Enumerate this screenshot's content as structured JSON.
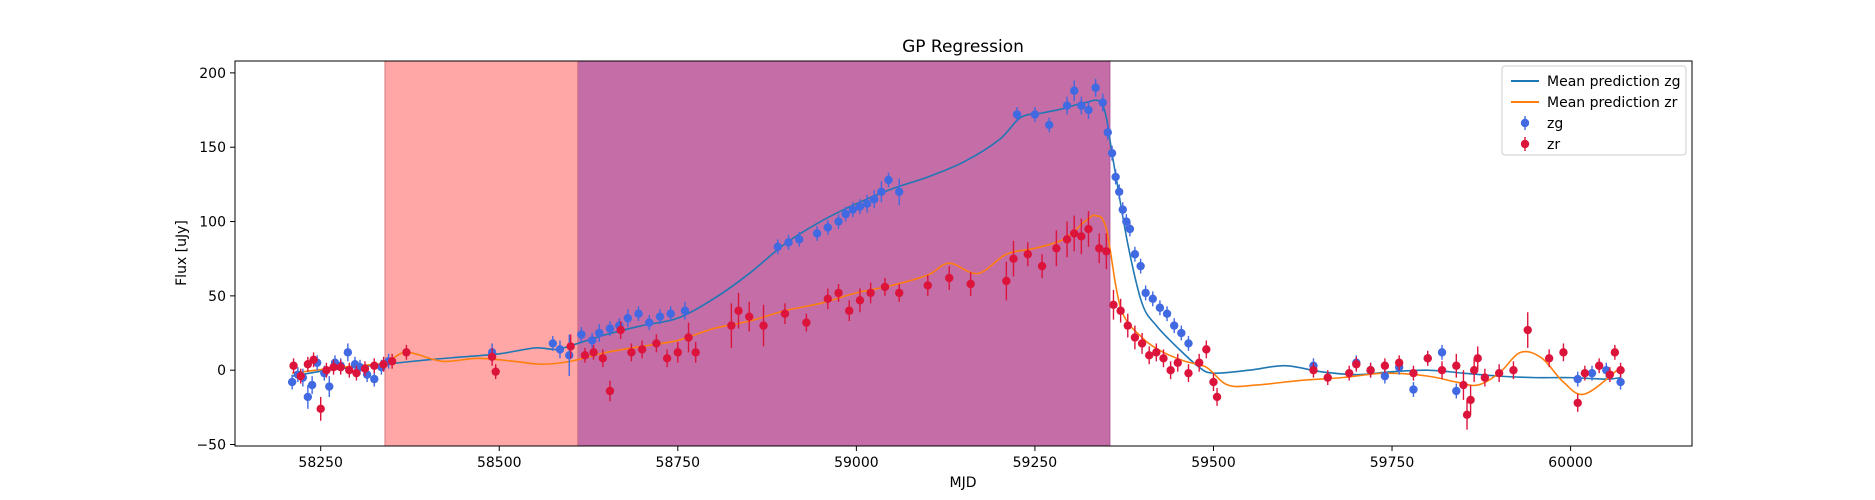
{
  "chart_data": {
    "type": "scatter",
    "title": "GP Regression",
    "xlabel": "MJD",
    "ylabel": "Flux [uJy]",
    "xlim": [
      58130,
      60170
    ],
    "ylim": [
      -51,
      208
    ],
    "xticks": [
      58250,
      58500,
      58750,
      59000,
      59250,
      59500,
      59750,
      60000
    ],
    "yticks": [
      -50,
      0,
      50,
      100,
      150,
      200
    ],
    "legend_position": "top-right",
    "shaded_regions": [
      {
        "x_start": 58340,
        "x_end": 58610,
        "color": "#ffa7a7"
      },
      {
        "x_start": 58610,
        "x_end": 59355,
        "color": "#c46da7"
      }
    ],
    "series": [
      {
        "name": "Mean prediction zg",
        "kind": "line",
        "color": "#1f77b4",
        "x": [
          58210,
          58260,
          58300,
          58340,
          58400,
          58450,
          58500,
          58550,
          58580,
          58610,
          58650,
          58700,
          58750,
          58800,
          58850,
          58900,
          58950,
          59000,
          59050,
          59100,
          59150,
          59200,
          59230,
          59260,
          59290,
          59320,
          59345,
          59360,
          59380,
          59400,
          59420,
          59450,
          59480,
          59500,
          59550,
          59600,
          59650,
          59700,
          59750,
          59800,
          59850,
          59900,
          59950,
          60000,
          60050,
          60070
        ],
        "y": [
          -4,
          0,
          2,
          4,
          7,
          9,
          11,
          15,
          14,
          18,
          24,
          30,
          35,
          48,
          65,
          85,
          100,
          112,
          122,
          130,
          140,
          155,
          170,
          173,
          176,
          180,
          178,
          140,
          85,
          45,
          30,
          15,
          2,
          -2,
          0,
          3,
          -1,
          -3,
          -1,
          0,
          -2,
          -4,
          -5,
          -5,
          -6,
          -5
        ]
      },
      {
        "name": "Mean prediction zr",
        "kind": "line",
        "color": "#ff7f0e",
        "x": [
          58210,
          58260,
          58300,
          58340,
          58370,
          58420,
          58470,
          58520,
          58560,
          58600,
          58650,
          58700,
          58750,
          58800,
          58850,
          58900,
          58950,
          59000,
          59050,
          59100,
          59130,
          59170,
          59210,
          59250,
          59290,
          59320,
          59335,
          59350,
          59370,
          59400,
          59430,
          59460,
          59490,
          59520,
          59560,
          59620,
          59680,
          59740,
          59800,
          59840,
          59870,
          59900,
          59930,
          59960,
          59990,
          60020,
          60070
        ],
        "y": [
          -2,
          1,
          3,
          5,
          12,
          6,
          8,
          6,
          4,
          6,
          12,
          16,
          20,
          28,
          33,
          40,
          45,
          52,
          57,
          64,
          72,
          65,
          78,
          82,
          88,
          100,
          104,
          95,
          42,
          22,
          12,
          6,
          2,
          -10,
          -10,
          -7,
          -5,
          -2,
          -4,
          -8,
          -10,
          -2,
          12,
          8,
          -8,
          -16,
          2
        ]
      },
      {
        "name": "zg",
        "kind": "errorbar",
        "color": "#4169e1",
        "x": [
          58210,
          58218,
          58225,
          58232,
          58238,
          58245,
          58255,
          58262,
          58270,
          58278,
          58288,
          58298,
          58305,
          58315,
          58325,
          58335,
          58345,
          58490,
          58575,
          58585,
          58598,
          58615,
          58630,
          58640,
          58655,
          58668,
          58680,
          58695,
          58710,
          58725,
          58740,
          58760,
          58890,
          58905,
          58920,
          58945,
          58960,
          58975,
          58985,
          58995,
          59005,
          59015,
          59025,
          59035,
          59045,
          59060,
          59225,
          59250,
          59270,
          59295,
          59305,
          59315,
          59325,
          59335,
          59345,
          59352,
          59358,
          59363,
          59368,
          59373,
          59378,
          59383,
          59390,
          59398,
          59405,
          59415,
          59425,
          59435,
          59445,
          59455,
          59465,
          59640,
          59700,
          59720,
          59740,
          59760,
          59780,
          59800,
          59820,
          59840,
          60010,
          60030,
          60050,
          60070
        ],
        "y": [
          -8,
          -3,
          -5,
          -18,
          -10,
          5,
          -2,
          -11,
          5,
          3,
          12,
          4,
          2,
          -3,
          -6,
          2,
          6,
          12,
          18,
          14,
          10,
          24,
          20,
          25,
          28,
          30,
          35,
          38,
          32,
          36,
          38,
          40,
          83,
          86,
          88,
          92,
          96,
          100,
          105,
          108,
          110,
          112,
          115,
          120,
          128,
          120,
          172,
          172,
          165,
          178,
          188,
          178,
          175,
          190,
          180,
          160,
          146,
          130,
          120,
          108,
          100,
          95,
          78,
          70,
          52,
          48,
          42,
          38,
          30,
          25,
          18,
          3,
          5,
          0,
          -4,
          2,
          -13,
          8,
          12,
          -14,
          -6,
          -2,
          0,
          -8
        ],
        "yerr": [
          5,
          5,
          6,
          8,
          6,
          5,
          5,
          7,
          5,
          5,
          6,
          5,
          5,
          5,
          5,
          5,
          5,
          6,
          5,
          6,
          14,
          5,
          5,
          6,
          5,
          5,
          6,
          5,
          5,
          5,
          5,
          6,
          5,
          5,
          5,
          5,
          5,
          5,
          5,
          5,
          5,
          6,
          6,
          7,
          5,
          9,
          5,
          5,
          5,
          6,
          7,
          6,
          6,
          6,
          6,
          5,
          5,
          5,
          5,
          5,
          5,
          5,
          5,
          5,
          5,
          5,
          5,
          5,
          5,
          5,
          5,
          5,
          5,
          5,
          5,
          5,
          5,
          5,
          5,
          5,
          5,
          5,
          5,
          5
        ]
      },
      {
        "name": "zr",
        "kind": "errorbar",
        "color": "#dc143c",
        "x": [
          58212,
          58222,
          58232,
          58240,
          58250,
          58258,
          58268,
          58278,
          58290,
          58300,
          58312,
          58325,
          58338,
          58350,
          58370,
          58490,
          58495,
          58600,
          58620,
          58632,
          58645,
          58655,
          58670,
          58685,
          58700,
          58720,
          58735,
          58750,
          58765,
          58775,
          58825,
          58835,
          58850,
          58870,
          58900,
          58930,
          58960,
          58975,
          58990,
          59005,
          59020,
          59040,
          59060,
          59100,
          59130,
          59160,
          59210,
          59220,
          59240,
          59260,
          59280,
          59295,
          59305,
          59315,
          59325,
          59340,
          59350,
          59360,
          59370,
          59380,
          59390,
          59400,
          59410,
          59420,
          59430,
          59440,
          59450,
          59465,
          59480,
          59490,
          59500,
          59505,
          59640,
          59660,
          59690,
          59700,
          59720,
          59740,
          59760,
          59780,
          59800,
          59820,
          59840,
          59850,
          59855,
          59860,
          59865,
          59870,
          59880,
          59900,
          59920,
          59940,
          59970,
          59990,
          60010,
          60020,
          60040,
          60055,
          60062,
          60070
        ],
        "y": [
          3,
          -4,
          4,
          7,
          -26,
          0,
          2,
          2,
          0,
          -2,
          1,
          3,
          4,
          6,
          12,
          9,
          -1,
          16,
          10,
          12,
          8,
          -14,
          27,
          12,
          14,
          18,
          8,
          12,
          22,
          12,
          30,
          40,
          36,
          30,
          38,
          32,
          48,
          52,
          40,
          47,
          52,
          56,
          52,
          57,
          62,
          58,
          60,
          75,
          78,
          70,
          82,
          88,
          92,
          90,
          95,
          82,
          80,
          44,
          40,
          30,
          22,
          18,
          10,
          12,
          8,
          0,
          5,
          -2,
          5,
          14,
          -8,
          -18,
          0,
          -5,
          -2,
          4,
          0,
          3,
          5,
          -2,
          8,
          0,
          3,
          -10,
          -30,
          -20,
          0,
          8,
          -5,
          -2,
          0,
          27,
          8,
          12,
          -22,
          -2,
          3,
          -3,
          12,
          0
        ],
        "yerr": [
          5,
          5,
          5,
          5,
          8,
          5,
          5,
          5,
          5,
          5,
          5,
          5,
          5,
          5,
          5,
          6,
          5,
          8,
          5,
          5,
          6,
          7,
          6,
          6,
          6,
          6,
          6,
          7,
          10,
          7,
          15,
          12,
          10,
          14,
          7,
          6,
          7,
          6,
          7,
          8,
          7,
          6,
          6,
          7,
          8,
          8,
          13,
          12,
          8,
          8,
          12,
          12,
          12,
          12,
          12,
          10,
          12,
          10,
          8,
          8,
          8,
          7,
          6,
          6,
          6,
          6,
          6,
          6,
          6,
          6,
          6,
          6,
          5,
          5,
          5,
          5,
          5,
          5,
          5,
          5,
          5,
          6,
          8,
          10,
          10,
          10,
          8,
          8,
          6,
          6,
          6,
          12,
          6,
          6,
          6,
          5,
          5,
          5,
          5,
          5
        ]
      }
    ]
  }
}
